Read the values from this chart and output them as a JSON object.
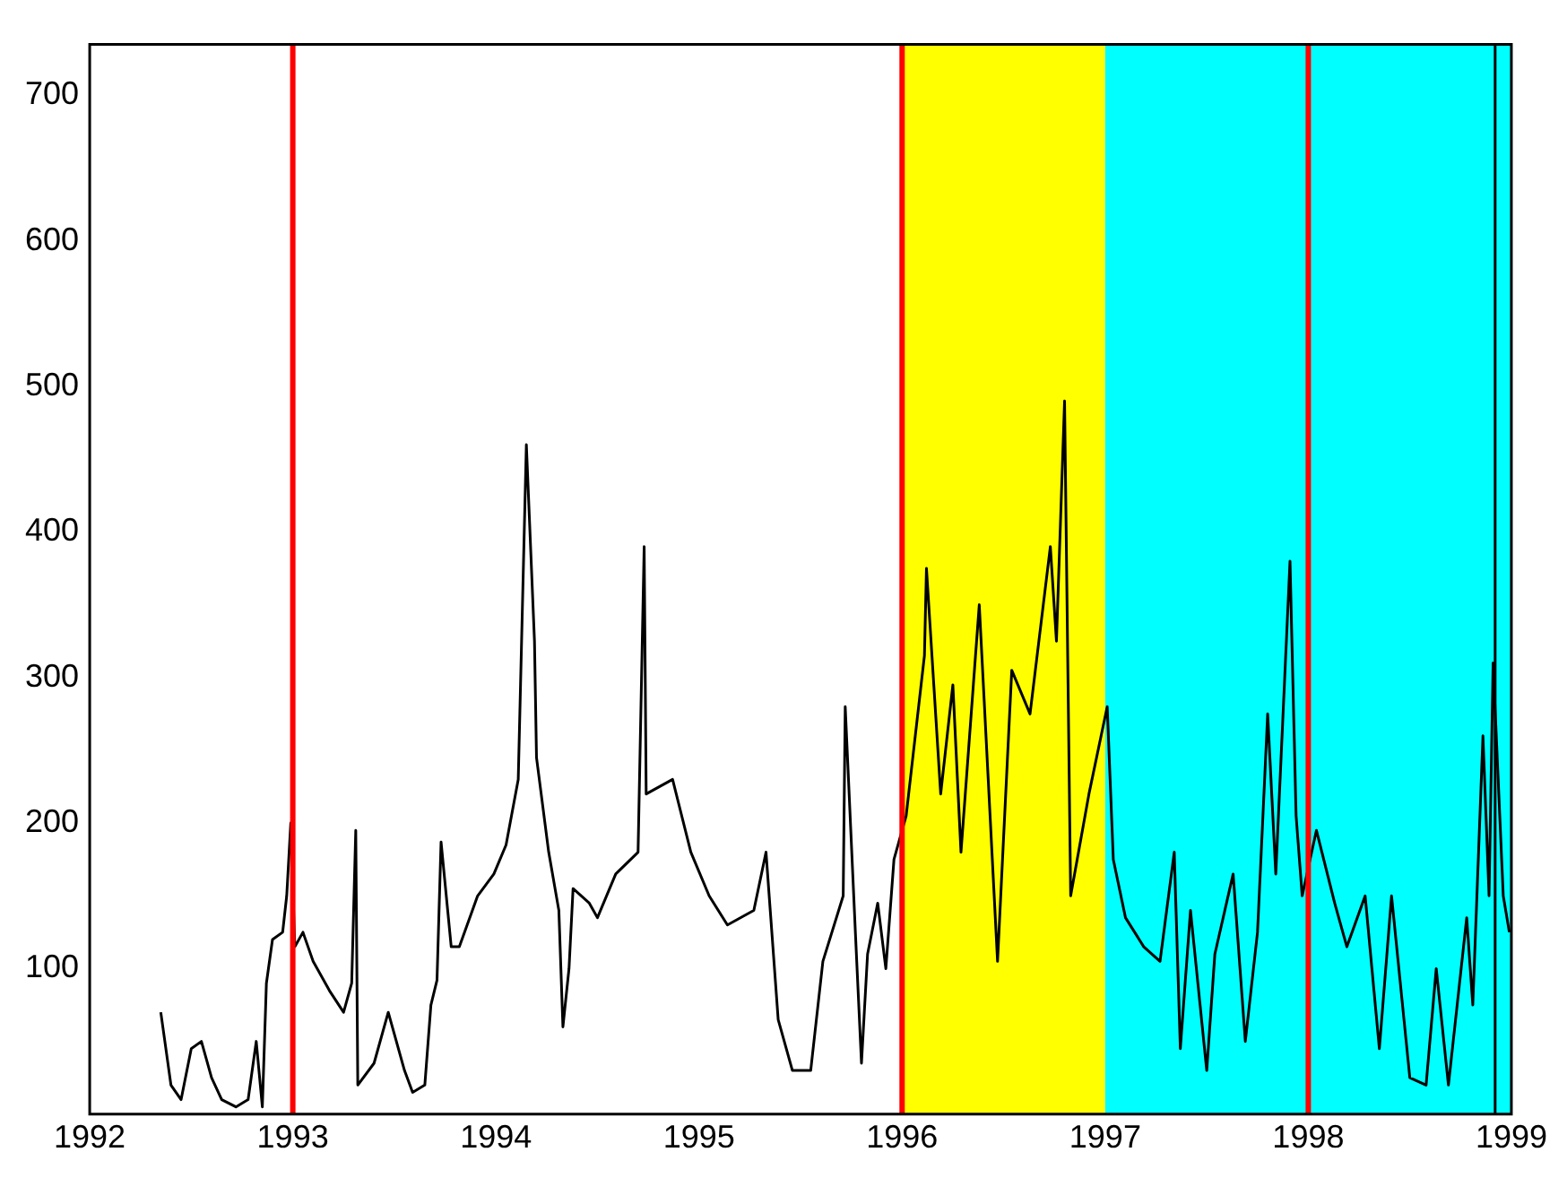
{
  "chart_data": {
    "type": "line",
    "xlim": [
      1992,
      1999
    ],
    "ylim": [
      0,
      735
    ],
    "xticks": [
      1992,
      1993,
      1994,
      1995,
      1996,
      1997,
      1998,
      1999
    ],
    "yticks": [
      100,
      200,
      300,
      400,
      500,
      600,
      700
    ],
    "marker": "none",
    "series": [
      {
        "color": "#000000",
        "x": [
          1992.35,
          1992.4,
          1992.45,
          1992.5,
          1992.55,
          1992.6,
          1992.65,
          1992.72,
          1992.78,
          1992.82,
          1992.85,
          1992.87,
          1992.9,
          1992.95,
          1992.97,
          1992.99,
          1993.01,
          1993.05,
          1993.1,
          1993.18,
          1993.25,
          1993.29,
          1993.31,
          1993.32,
          1993.4,
          1993.47,
          1993.55,
          1993.59,
          1993.65,
          1993.68,
          1993.71,
          1993.73,
          1993.78,
          1993.82,
          1993.91,
          1993.99,
          1994.05,
          1994.11,
          1994.15,
          1994.19,
          1994.2,
          1994.26,
          1994.31,
          1994.33,
          1994.36,
          1994.38,
          1994.46,
          1994.5,
          1994.59,
          1994.7,
          1994.73,
          1994.74,
          1994.87,
          1994.96,
          1995.05,
          1995.14,
          1995.27,
          1995.33,
          1995.39,
          1995.46,
          1995.55,
          1995.61,
          1995.71,
          1995.72,
          1995.77,
          1995.8,
          1995.83,
          1995.88,
          1995.92,
          1995.96,
          1996.02,
          1996.11,
          1996.12,
          1996.19,
          1996.25,
          1996.29,
          1996.38,
          1996.47,
          1996.54,
          1996.63,
          1996.73,
          1996.76,
          1996.8,
          1996.83,
          1996.92,
          1997.01,
          1997.04,
          1997.1,
          1997.19,
          1997.27,
          1997.34,
          1997.37,
          1997.42,
          1997.5,
          1997.54,
          1997.63,
          1997.69,
          1997.75,
          1997.8,
          1997.84,
          1997.91,
          1997.94,
          1997.97,
          1998.04,
          1998.13,
          1998.19,
          1998.28,
          1998.35,
          1998.41,
          1998.5,
          1998.58,
          1998.63,
          1998.69,
          1998.78,
          1998.81,
          1998.86,
          1998.89,
          1998.91,
          1998.96,
          1998.99
        ],
        "values": [
          70,
          20,
          10,
          45,
          50,
          25,
          10,
          5,
          10,
          50,
          5,
          90,
          120,
          125,
          150,
          200,
          115,
          125,
          105,
          85,
          70,
          90,
          195,
          20,
          35,
          70,
          30,
          15,
          20,
          75,
          92,
          187,
          115,
          115,
          150,
          165,
          185,
          230,
          460,
          325,
          245,
          180,
          140,
          60,
          100,
          155,
          145,
          135,
          165,
          180,
          390,
          220,
          230,
          180,
          150,
          130,
          140,
          180,
          65,
          30,
          30,
          105,
          150,
          280,
          125,
          35,
          110,
          145,
          100,
          175,
          205,
          315,
          375,
          220,
          295,
          180,
          350,
          105,
          305,
          275,
          390,
          325,
          490,
          150,
          220,
          280,
          175,
          135,
          115,
          105,
          180,
          45,
          140,
          30,
          110,
          165,
          50,
          125,
          275,
          165,
          380,
          205,
          150,
          195,
          145,
          115,
          150,
          45,
          150,
          25,
          20,
          100,
          20,
          135,
          75,
          260,
          150,
          310,
          150,
          125
        ]
      }
    ],
    "bands": [
      {
        "axis": "x",
        "from": 1996,
        "to": 1997,
        "color": "#ffff00"
      },
      {
        "axis": "x",
        "from": 1997,
        "to": 1999,
        "color": "#00ffff"
      }
    ],
    "ref_lines": [
      {
        "axis": "x",
        "value": 1993,
        "color": "#ff0000"
      },
      {
        "axis": "x",
        "value": 1996,
        "color": "#ff0000"
      },
      {
        "axis": "x",
        "value": 1998,
        "color": "#ff0000"
      },
      {
        "axis": "x",
        "value": 1998.92,
        "color": "#000000"
      }
    ]
  }
}
